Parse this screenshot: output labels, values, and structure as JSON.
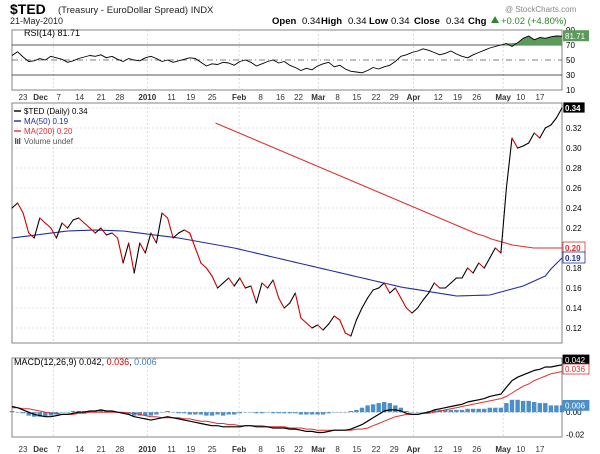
{
  "header": {
    "symbol": "$TED",
    "name": "(Treasury - EuroDollar Spread) INDX",
    "date": "21-May-2010",
    "watermark": "@ StockCharts.com",
    "open_label": "Open",
    "open": "0.34",
    "high_label": "High",
    "high": "0.34",
    "low_label": "Low",
    "low": "0.34",
    "close_label": "Close",
    "close": "0.34",
    "chg_label": "Chg",
    "chg": "+0.02 (+4.80%)",
    "chg_arrow": "up-arrow-icon"
  },
  "colors": {
    "price": "#000000",
    "red_segment": "#cc0000",
    "ma50": "#1f2f9f",
    "ma200": "#e03030",
    "rsi": "#000000",
    "rsi_fill": "#5a9a5a",
    "macd": "#000000",
    "macd_signal": "#e03030",
    "macd_hist": "#4a8fc9",
    "grid": "#cccccc",
    "border": "#666666"
  },
  "rsi_panel": {
    "label": "RSI(14) 81.71",
    "levels": [
      70,
      50,
      30
    ],
    "axis_labels": [
      "90",
      "70",
      "50",
      "30",
      "10"
    ],
    "last_label": "81.71"
  },
  "price_legend": [
    {
      "text": "$TED (Daily) 0.34",
      "color": "#000000",
      "icon": "line-swatch-icon"
    },
    {
      "text": "MA(50) 0.19",
      "color": "#1f2f9f",
      "icon": "line-swatch-icon"
    },
    {
      "text": "MA(200) 0.20",
      "color": "#e03030",
      "icon": "line-swatch-icon"
    },
    {
      "text": "Volume undef",
      "color": "#555555",
      "icon": "volume-bars-icon"
    }
  ],
  "macd_panel": {
    "label_prefix": "MACD(12,26,9) ",
    "macd_value": "0.042",
    "sep1": ", ",
    "signal_value": "0.036",
    "sep2": ", ",
    "hist_value": "0.006",
    "axis_labels": [
      "0.06",
      "0.00",
      "-0.02"
    ],
    "flag_labels": [
      "0.042",
      "0.036",
      "0.006"
    ]
  },
  "x_axis_labels": [
    "23",
    "Dec",
    "7",
    "14",
    "21",
    "28",
    "2010",
    "11",
    "19",
    "25",
    "Feb",
    "8",
    "16",
    "22",
    "Mar",
    "8",
    "15",
    "22",
    "29",
    "Apr",
    "12",
    "19",
    "26",
    "May",
    "10",
    "17"
  ],
  "chart_data": [
    {
      "type": "line",
      "title": "RSI(14) 81.71",
      "ylim": [
        10,
        90
      ],
      "series": [
        {
          "name": "RSI(14)",
          "values": [
            56,
            61,
            54,
            48,
            49,
            52,
            50,
            55,
            53,
            51,
            47,
            49,
            52,
            54,
            56,
            55,
            57,
            53,
            55,
            51,
            48,
            52,
            50,
            49,
            53,
            55,
            52,
            48,
            50,
            47,
            49,
            51,
            53,
            52,
            47,
            42,
            45,
            44,
            47,
            46,
            43,
            48,
            50,
            47,
            42,
            45,
            48,
            50,
            46,
            48,
            43,
            40,
            36,
            39,
            37,
            42,
            45,
            47,
            41,
            43,
            38,
            35,
            34,
            33,
            36,
            40,
            38,
            41,
            43,
            48,
            55,
            57,
            60,
            62,
            65,
            63,
            60,
            57,
            59,
            62,
            58,
            55,
            53,
            57,
            60,
            63,
            66,
            68,
            70,
            72,
            68,
            73,
            79,
            82,
            77,
            80,
            79,
            81,
            82,
            81.71
          ]
        }
      ]
    },
    {
      "type": "line",
      "title": "$TED (Treasury - EuroDollar Spread) INDX",
      "ylim": [
        0.105,
        0.345
      ],
      "y_ticks": [
        0.12,
        0.14,
        0.16,
        0.18,
        0.2,
        0.22,
        0.24,
        0.26,
        0.28,
        0.3,
        0.32,
        0.34
      ],
      "series": [
        {
          "name": "$TED (Daily)",
          "values": [
            0.24,
            0.245,
            0.235,
            0.215,
            0.21,
            0.23,
            0.225,
            0.22,
            0.21,
            0.225,
            0.22,
            0.228,
            0.23,
            0.225,
            0.22,
            0.215,
            0.22,
            0.213,
            0.215,
            0.21,
            0.185,
            0.205,
            0.175,
            0.205,
            0.195,
            0.215,
            0.205,
            0.235,
            0.23,
            0.21,
            0.215,
            0.218,
            0.215,
            0.2,
            0.185,
            0.18,
            0.172,
            0.16,
            0.165,
            0.17,
            0.162,
            0.17,
            0.16,
            0.162,
            0.145,
            0.165,
            0.16,
            0.168,
            0.15,
            0.14,
            0.145,
            0.155,
            0.13,
            0.125,
            0.12,
            0.123,
            0.118,
            0.124,
            0.132,
            0.128,
            0.115,
            0.112,
            0.128,
            0.14,
            0.15,
            0.158,
            0.16,
            0.165,
            0.155,
            0.16,
            0.15,
            0.14,
            0.135,
            0.14,
            0.148,
            0.155,
            0.165,
            0.16,
            0.16,
            0.165,
            0.17,
            0.17,
            0.18,
            0.175,
            0.185,
            0.18,
            0.19,
            0.2,
            0.195,
            0.26,
            0.31,
            0.3,
            0.302,
            0.305,
            0.315,
            0.31,
            0.32,
            0.323,
            0.33,
            0.34
          ]
        },
        {
          "name": "MA(50)",
          "values": [
            0.21,
            0.2107,
            0.2114,
            0.2121,
            0.2128,
            0.2135,
            0.2142,
            0.2149,
            0.2156,
            0.2163,
            0.217,
            0.2172,
            0.2174,
            0.2176,
            0.2178,
            0.218,
            0.2178,
            0.2176,
            0.2174,
            0.2172,
            0.217,
            0.2163,
            0.2156,
            0.2149,
            0.2142,
            0.2135,
            0.2128,
            0.2121,
            0.2114,
            0.2107,
            0.21,
            0.209,
            0.208,
            0.207,
            0.206,
            0.205,
            0.204,
            0.203,
            0.202,
            0.201,
            0.2,
            0.1987,
            0.1974,
            0.1961,
            0.1948,
            0.1935,
            0.1922,
            0.1909,
            0.1896,
            0.1883,
            0.187,
            0.1857,
            0.1844,
            0.1831,
            0.1818,
            0.1805,
            0.1792,
            0.1779,
            0.1766,
            0.1753,
            0.174,
            0.1727,
            0.1714,
            0.1701,
            0.1688,
            0.1675,
            0.1662,
            0.1649,
            0.1636,
            0.1623,
            0.161,
            0.1601,
            0.1592,
            0.1583,
            0.1574,
            0.1565,
            0.1556,
            0.1547,
            0.1538,
            0.1529,
            0.152,
            0.1522,
            0.1523,
            0.1525,
            0.1527,
            0.1528,
            0.153,
            0.1545,
            0.156,
            0.1575,
            0.159,
            0.1605,
            0.162,
            0.1645,
            0.167,
            0.1695,
            0.172,
            0.179,
            0.1845,
            0.19
          ]
        },
        {
          "name": "MA(200)",
          "values": [
            0.325,
            0.322,
            0.319,
            0.316,
            0.313,
            0.31,
            0.307,
            0.304,
            0.301,
            0.298,
            0.295,
            0.292,
            0.289,
            0.286,
            0.283,
            0.28,
            0.277,
            0.274,
            0.271,
            0.268,
            0.265,
            0.262,
            0.259,
            0.256,
            0.253,
            0.25,
            0.247,
            0.244,
            0.241,
            0.238,
            0.235,
            0.232,
            0.229,
            0.226,
            0.223,
            0.22,
            0.217,
            0.214,
            0.212,
            0.209,
            0.207,
            0.205,
            0.203,
            0.202,
            0.201,
            0.2,
            0.2,
            0.2,
            0.2,
            0.2
          ]
        }
      ]
    },
    {
      "type": "line",
      "title": "MACD(12,26,9)",
      "ylim": [
        -0.022,
        0.048
      ],
      "series": [
        {
          "name": "MACD",
          "values": [
            0.005,
            0.004,
            0.002,
            0.0,
            -0.002,
            -0.003,
            -0.004,
            -0.004,
            -0.003,
            -0.002,
            -0.002,
            -0.001,
            0.0,
            0.0,
            0.001,
            0.001,
            0.002,
            0.001,
            0.001,
            0.0,
            -0.001,
            -0.002,
            -0.004,
            -0.005,
            -0.006,
            -0.007,
            -0.006,
            -0.005,
            -0.004,
            -0.005,
            -0.006,
            -0.007,
            -0.008,
            -0.009,
            -0.01,
            -0.011,
            -0.012,
            -0.012,
            -0.013,
            -0.013,
            -0.013,
            -0.013,
            -0.012,
            -0.012,
            -0.013,
            -0.013,
            -0.013,
            -0.014,
            -0.014,
            -0.014,
            -0.015,
            -0.015,
            -0.016,
            -0.017,
            -0.017,
            -0.018,
            -0.018,
            -0.017,
            -0.016,
            -0.016,
            -0.016,
            -0.015,
            -0.013,
            -0.011,
            -0.008,
            -0.005,
            -0.002,
            0.001,
            0.002,
            0.002,
            0.001,
            -0.001,
            -0.002,
            -0.002,
            -0.001,
            0.0,
            0.002,
            0.003,
            0.004,
            0.005,
            0.006,
            0.007,
            0.009,
            0.01,
            0.011,
            0.012,
            0.014,
            0.015,
            0.016,
            0.022,
            0.028,
            0.031,
            0.033,
            0.035,
            0.037,
            0.038,
            0.04,
            0.04,
            0.041,
            0.042
          ]
        },
        {
          "name": "Signal",
          "values": [
            0.004,
            0.004,
            0.003,
            0.003,
            0.002,
            0.001,
            0.0,
            -0.001,
            -0.001,
            -0.002,
            -0.002,
            -0.002,
            -0.001,
            -0.001,
            0.0,
            0.0,
            0.0,
            0.0,
            0.0,
            0.0,
            0.0,
            -0.001,
            -0.001,
            -0.002,
            -0.003,
            -0.004,
            -0.004,
            -0.005,
            -0.005,
            -0.005,
            -0.005,
            -0.006,
            -0.006,
            -0.007,
            -0.008,
            -0.008,
            -0.009,
            -0.01,
            -0.01,
            -0.011,
            -0.011,
            -0.012,
            -0.012,
            -0.012,
            -0.012,
            -0.012,
            -0.013,
            -0.013,
            -0.013,
            -0.013,
            -0.014,
            -0.014,
            -0.014,
            -0.015,
            -0.015,
            -0.016,
            -0.016,
            -0.016,
            -0.016,
            -0.016,
            -0.016,
            -0.016,
            -0.015,
            -0.015,
            -0.014,
            -0.012,
            -0.01,
            -0.008,
            -0.006,
            -0.004,
            -0.003,
            -0.002,
            -0.002,
            -0.002,
            -0.001,
            -0.001,
            0.0,
            0.001,
            0.002,
            0.003,
            0.004,
            0.005,
            0.006,
            0.007,
            0.008,
            0.009,
            0.01,
            0.011,
            0.012,
            0.014,
            0.017,
            0.02,
            0.023,
            0.025,
            0.028,
            0.03,
            0.032,
            0.034,
            0.035,
            0.036
          ]
        },
        {
          "name": "Histogram",
          "values": [
            0.001,
            0.0,
            -0.001,
            -0.003,
            -0.004,
            -0.004,
            -0.004,
            -0.003,
            -0.002,
            0.0,
            0.0,
            0.001,
            0.001,
            0.001,
            0.001,
            0.001,
            0.002,
            0.001,
            0.001,
            0.0,
            -0.001,
            -0.001,
            -0.003,
            -0.003,
            -0.003,
            -0.003,
            -0.002,
            0.0,
            0.001,
            0.0,
            -0.001,
            -0.001,
            -0.002,
            -0.002,
            -0.002,
            -0.003,
            -0.003,
            -0.002,
            -0.003,
            -0.002,
            -0.002,
            -0.001,
            0.0,
            0.0,
            -0.001,
            -0.001,
            0.0,
            -0.001,
            -0.001,
            -0.001,
            -0.001,
            -0.001,
            -0.002,
            -0.002,
            -0.002,
            -0.002,
            -0.002,
            -0.001,
            0.0,
            0.0,
            0.0,
            0.001,
            0.002,
            0.004,
            0.006,
            0.007,
            0.008,
            0.009,
            0.008,
            0.006,
            0.004,
            0.001,
            0.0,
            0.0,
            0.0,
            0.001,
            0.002,
            0.002,
            0.002,
            0.002,
            0.002,
            0.002,
            0.003,
            0.003,
            0.003,
            0.003,
            0.004,
            0.004,
            0.004,
            0.008,
            0.011,
            0.011,
            0.01,
            0.01,
            0.009,
            0.008,
            0.008,
            0.006,
            0.006,
            0.006
          ]
        }
      ]
    }
  ]
}
